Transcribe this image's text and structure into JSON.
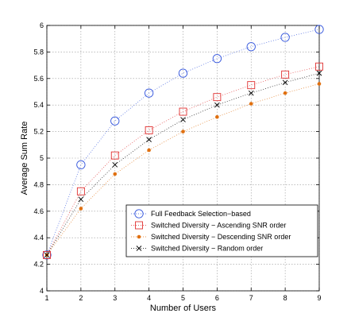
{
  "chart_data": {
    "type": "line",
    "title": "",
    "xlabel": "Number of Users",
    "ylabel": "Average Sum Rate",
    "xlim": [
      1,
      9
    ],
    "ylim": [
      4,
      6
    ],
    "xticks": [
      1,
      2,
      3,
      4,
      5,
      6,
      7,
      8,
      9
    ],
    "yticks": [
      4,
      4.2,
      4.4,
      4.6,
      4.8,
      5,
      5.2,
      5.4,
      5.6,
      5.8,
      6
    ],
    "grid": true,
    "legend_position": "lower-right",
    "x": [
      1,
      2,
      3,
      4,
      5,
      6,
      7,
      8,
      9
    ],
    "series": [
      {
        "name": "Full Feedback Selection−based",
        "marker": "circle",
        "color": "#3355dd",
        "values": [
          4.27,
          4.95,
          5.28,
          5.49,
          5.64,
          5.75,
          5.84,
          5.91,
          5.97
        ]
      },
      {
        "name": "Switched Diversity − Ascending SNR order",
        "marker": "square",
        "color": "#e03030",
        "values": [
          4.27,
          4.75,
          5.02,
          5.21,
          5.35,
          5.46,
          5.55,
          5.63,
          5.69
        ]
      },
      {
        "name": "Switched Diversity − Descending SNR order",
        "marker": "dot",
        "color": "#e07010",
        "values": [
          4.27,
          4.62,
          4.88,
          5.06,
          5.2,
          5.31,
          5.41,
          5.49,
          5.56
        ]
      },
      {
        "name": "Switched Diversity − Random order",
        "marker": "x",
        "color": "#000000",
        "values": [
          4.27,
          4.69,
          4.95,
          5.14,
          5.29,
          5.4,
          5.49,
          5.57,
          5.64
        ]
      }
    ]
  }
}
